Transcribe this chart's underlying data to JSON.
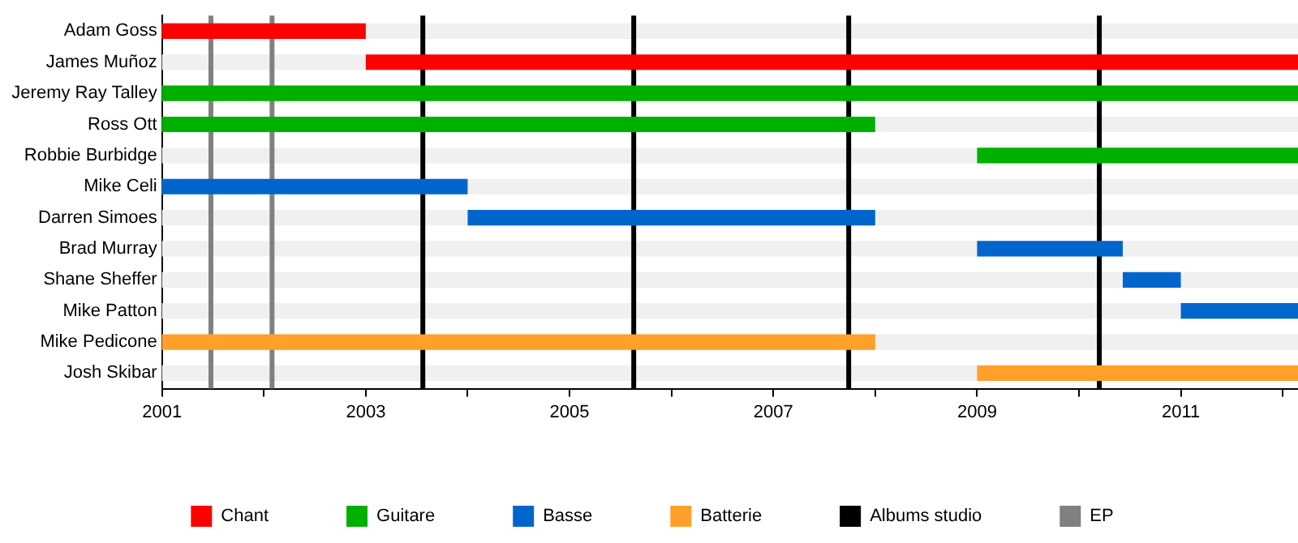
{
  "chart_data": {
    "type": "bar",
    "orientation": "horizontal",
    "categories": [
      "Adam Goss",
      "James Muñoz",
      "Jeremy Ray Talley",
      "Ross Ott",
      "Robbie Burbidge",
      "Mike Celi",
      "Darren Simoes",
      "Brad Murray",
      "Shane Sheffer",
      "Mike Patton",
      "Mike Pedicone",
      "Josh Skibar"
    ],
    "series": [
      {
        "name": "Chant",
        "color": "#ff0000",
        "base": [
          2001,
          2003,
          null,
          null,
          null,
          null,
          null,
          null,
          null,
          null,
          null,
          null
        ],
        "values": [
          2,
          9.15,
          null,
          null,
          null,
          null,
          null,
          null,
          null,
          null,
          null,
          null
        ]
      },
      {
        "name": "Guitare",
        "color": "#00b000",
        "base": [
          null,
          null,
          2001,
          2001,
          2009,
          null,
          null,
          null,
          null,
          null,
          null,
          null
        ],
        "values": [
          null,
          null,
          11.15,
          7,
          3.15,
          null,
          null,
          null,
          null,
          null,
          null,
          null
        ]
      },
      {
        "name": "Basse",
        "color": "#0066cc",
        "base": [
          null,
          null,
          null,
          null,
          null,
          2001,
          2004,
          2009,
          2010.43,
          2011,
          null,
          null
        ],
        "values": [
          null,
          null,
          null,
          null,
          null,
          3,
          4,
          1.43,
          0.57,
          1.15,
          null,
          null
        ]
      },
      {
        "name": "Batterie",
        "color": "#ffa02a",
        "base": [
          null,
          null,
          null,
          null,
          null,
          null,
          null,
          null,
          null,
          null,
          2001,
          2009
        ],
        "values": [
          null,
          null,
          null,
          null,
          null,
          null,
          null,
          null,
          null,
          null,
          7,
          3.15
        ]
      }
    ],
    "ref_lines": [
      {
        "axis": "x",
        "value": 2003.56,
        "label": "Albums studio",
        "color": "#000000"
      },
      {
        "axis": "x",
        "value": 2005.63,
        "color": "#000000"
      },
      {
        "axis": "x",
        "value": 2007.74,
        "color": "#000000"
      },
      {
        "axis": "x",
        "value": 2010.2,
        "color": "#000000"
      },
      {
        "axis": "x",
        "value": 2001.48,
        "label": "EP",
        "color": "#808080"
      },
      {
        "axis": "x",
        "value": 2002.08,
        "color": "#808080"
      }
    ],
    "xlim": [
      2001,
      2012.15
    ],
    "xticks": [
      2001,
      {
        "value": 2002,
        "label": null
      },
      2003,
      {
        "value": 2004,
        "label": null
      },
      2005,
      {
        "value": 2006,
        "label": null
      },
      2007,
      {
        "value": 2008,
        "label": null
      },
      2009,
      {
        "value": 2010,
        "label": null
      },
      2011,
      {
        "value": 2012,
        "label": null
      }
    ],
    "grid": false,
    "legend": "bottom"
  }
}
